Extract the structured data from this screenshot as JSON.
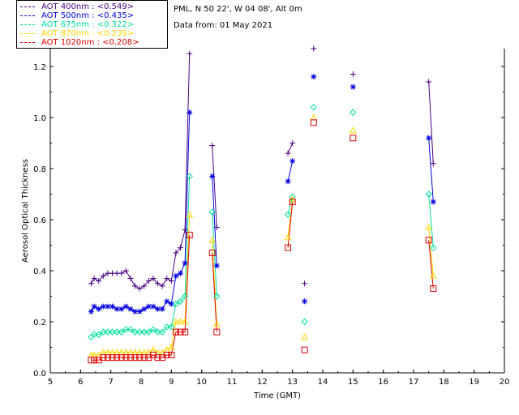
{
  "info": {
    "location": "PML, N 50 22', W 04 08', Alt 0m",
    "date": "Data from: 01 May 2021"
  },
  "legend": [
    {
      "label": "AOT  400nm : <0.549>",
      "color": "#4b0082"
    },
    {
      "label": "AOT  500nm : <0.435>",
      "color": "#0000e0"
    },
    {
      "label": "AOT  675nm : <0.322>",
      "color": "#00e0a0"
    },
    {
      "label": "AOT  870nm : <0.239>",
      "color": "#ffd700"
    },
    {
      "label": "AOT 1020nm : <0.208>",
      "color": "#e00000"
    }
  ],
  "chart_data": {
    "type": "line",
    "title": "",
    "xlabel": "Time (GMT)",
    "ylabel": "Aerosol Optical Thickness",
    "xlim": [
      5,
      20
    ],
    "ylim": [
      0.0,
      1.27
    ],
    "xticks": [
      5,
      6,
      7,
      8,
      9,
      10,
      11,
      12,
      13,
      14,
      15,
      16,
      17,
      18,
      19,
      20
    ],
    "yticks": [
      0.0,
      0.2,
      0.4,
      0.6,
      0.8,
      1.0,
      1.2
    ],
    "ytick_labels": [
      "0.0",
      "0.2",
      "0.4",
      "0.6",
      "0.8",
      "1.0",
      "1.2"
    ],
    "series": [
      {
        "name": "AOT 400nm",
        "marker": "plus",
        "color": "#4b0082",
        "segments": [
          [
            [
              6.35,
              0.35
            ],
            [
              6.45,
              0.37
            ],
            [
              6.6,
              0.36
            ],
            [
              6.75,
              0.38
            ],
            [
              6.9,
              0.39
            ],
            [
              7.05,
              0.39
            ],
            [
              7.2,
              0.39
            ],
            [
              7.35,
              0.39
            ],
            [
              7.5,
              0.4
            ],
            [
              7.65,
              0.37
            ],
            [
              7.8,
              0.34
            ],
            [
              7.95,
              0.33
            ],
            [
              8.1,
              0.34
            ],
            [
              8.25,
              0.36
            ],
            [
              8.4,
              0.37
            ],
            [
              8.55,
              0.35
            ],
            [
              8.7,
              0.34
            ],
            [
              8.85,
              0.37
            ],
            [
              9.0,
              0.36
            ],
            [
              9.15,
              0.47
            ],
            [
              9.3,
              0.49
            ],
            [
              9.45,
              0.56
            ],
            [
              9.6,
              1.25
            ]
          ],
          [
            [
              10.35,
              0.89
            ],
            [
              10.5,
              0.57
            ]
          ],
          [
            [
              12.85,
              0.86
            ],
            [
              13.0,
              0.9
            ]
          ],
          [
            [
              13.4,
              0.35
            ]
          ],
          [
            [
              13.7,
              1.27
            ]
          ],
          [
            [
              15.0,
              1.17
            ]
          ],
          [
            [
              17.5,
              1.14
            ],
            [
              17.65,
              0.82
            ]
          ]
        ]
      },
      {
        "name": "AOT 500nm",
        "marker": "asterisk",
        "color": "#0000e0",
        "segments": [
          [
            [
              6.35,
              0.24
            ],
            [
              6.45,
              0.26
            ],
            [
              6.6,
              0.25
            ],
            [
              6.75,
              0.26
            ],
            [
              6.9,
              0.26
            ],
            [
              7.05,
              0.26
            ],
            [
              7.2,
              0.25
            ],
            [
              7.35,
              0.25
            ],
            [
              7.5,
              0.26
            ],
            [
              7.65,
              0.25
            ],
            [
              7.8,
              0.24
            ],
            [
              7.95,
              0.24
            ],
            [
              8.1,
              0.25
            ],
            [
              8.25,
              0.26
            ],
            [
              8.4,
              0.26
            ],
            [
              8.55,
              0.25
            ],
            [
              8.7,
              0.25
            ],
            [
              8.85,
              0.28
            ],
            [
              9.0,
              0.27
            ],
            [
              9.15,
              0.38
            ],
            [
              9.3,
              0.39
            ],
            [
              9.45,
              0.43
            ],
            [
              9.6,
              1.02
            ]
          ],
          [
            [
              10.35,
              0.77
            ],
            [
              10.5,
              0.42
            ]
          ],
          [
            [
              12.85,
              0.75
            ],
            [
              13.0,
              0.83
            ]
          ],
          [
            [
              13.4,
              0.28
            ]
          ],
          [
            [
              13.7,
              1.16
            ]
          ],
          [
            [
              15.0,
              1.12
            ]
          ],
          [
            [
              17.5,
              0.92
            ],
            [
              17.65,
              0.67
            ]
          ]
        ]
      },
      {
        "name": "AOT 675nm",
        "marker": "diamond",
        "color": "#00e0a0",
        "segments": [
          [
            [
              6.35,
              0.14
            ],
            [
              6.45,
              0.15
            ],
            [
              6.6,
              0.15
            ],
            [
              6.75,
              0.16
            ],
            [
              6.9,
              0.16
            ],
            [
              7.05,
              0.16
            ],
            [
              7.2,
              0.16
            ],
            [
              7.35,
              0.16
            ],
            [
              7.5,
              0.17
            ],
            [
              7.65,
              0.17
            ],
            [
              7.8,
              0.16
            ],
            [
              7.95,
              0.16
            ],
            [
              8.1,
              0.16
            ],
            [
              8.25,
              0.16
            ],
            [
              8.4,
              0.17
            ],
            [
              8.55,
              0.16
            ],
            [
              8.7,
              0.16
            ],
            [
              8.85,
              0.18
            ],
            [
              9.0,
              0.18
            ],
            [
              9.15,
              0.27
            ],
            [
              9.3,
              0.28
            ],
            [
              9.45,
              0.3
            ],
            [
              9.6,
              0.77
            ]
          ],
          [
            [
              10.35,
              0.63
            ],
            [
              10.5,
              0.3
            ]
          ],
          [
            [
              12.85,
              0.62
            ],
            [
              13.0,
              0.69
            ]
          ],
          [
            [
              13.4,
              0.2
            ]
          ],
          [
            [
              13.7,
              1.04
            ]
          ],
          [
            [
              15.0,
              1.02
            ]
          ],
          [
            [
              17.5,
              0.7
            ],
            [
              17.65,
              0.49
            ]
          ]
        ]
      },
      {
        "name": "AOT 870nm",
        "marker": "triangle",
        "color": "#ffd700",
        "segments": [
          [
            [
              6.35,
              0.07
            ],
            [
              6.45,
              0.07
            ],
            [
              6.6,
              0.07
            ],
            [
              6.75,
              0.08
            ],
            [
              6.9,
              0.08
            ],
            [
              7.05,
              0.08
            ],
            [
              7.2,
              0.08
            ],
            [
              7.35,
              0.08
            ],
            [
              7.5,
              0.08
            ],
            [
              7.65,
              0.08
            ],
            [
              7.8,
              0.08
            ],
            [
              7.95,
              0.08
            ],
            [
              8.1,
              0.08
            ],
            [
              8.25,
              0.08
            ],
            [
              8.4,
              0.09
            ],
            [
              8.55,
              0.08
            ],
            [
              8.7,
              0.08
            ],
            [
              8.85,
              0.09
            ],
            [
              9.0,
              0.1
            ],
            [
              9.15,
              0.2
            ],
            [
              9.3,
              0.2
            ],
            [
              9.45,
              0.2
            ],
            [
              9.6,
              0.62
            ]
          ],
          [
            [
              10.35,
              0.52
            ],
            [
              10.5,
              0.19
            ]
          ],
          [
            [
              12.85,
              0.53
            ],
            [
              13.0,
              0.68
            ]
          ],
          [
            [
              13.4,
              0.14
            ]
          ],
          [
            [
              13.7,
              1.0
            ]
          ],
          [
            [
              15.0,
              0.95
            ]
          ],
          [
            [
              17.5,
              0.57
            ],
            [
              17.65,
              0.38
            ]
          ]
        ]
      },
      {
        "name": "AOT 1020nm",
        "marker": "square",
        "color": "#e00000",
        "segments": [
          [
            [
              6.35,
              0.05
            ],
            [
              6.45,
              0.05
            ],
            [
              6.6,
              0.05
            ],
            [
              6.75,
              0.06
            ],
            [
              6.9,
              0.06
            ],
            [
              7.05,
              0.06
            ],
            [
              7.2,
              0.06
            ],
            [
              7.35,
              0.06
            ],
            [
              7.5,
              0.06
            ],
            [
              7.65,
              0.06
            ],
            [
              7.8,
              0.06
            ],
            [
              7.95,
              0.06
            ],
            [
              8.1,
              0.06
            ],
            [
              8.25,
              0.06
            ],
            [
              8.4,
              0.07
            ],
            [
              8.55,
              0.06
            ],
            [
              8.7,
              0.06
            ],
            [
              8.85,
              0.07
            ],
            [
              9.0,
              0.07
            ],
            [
              9.15,
              0.16
            ],
            [
              9.3,
              0.16
            ],
            [
              9.45,
              0.16
            ],
            [
              9.6,
              0.54
            ]
          ],
          [
            [
              10.35,
              0.47
            ],
            [
              10.5,
              0.16
            ]
          ],
          [
            [
              12.85,
              0.49
            ],
            [
              13.0,
              0.67
            ]
          ],
          [
            [
              13.4,
              0.09
            ]
          ],
          [
            [
              13.7,
              0.98
            ]
          ],
          [
            [
              15.0,
              0.92
            ]
          ],
          [
            [
              17.5,
              0.52
            ],
            [
              17.65,
              0.33
            ]
          ]
        ]
      }
    ]
  }
}
